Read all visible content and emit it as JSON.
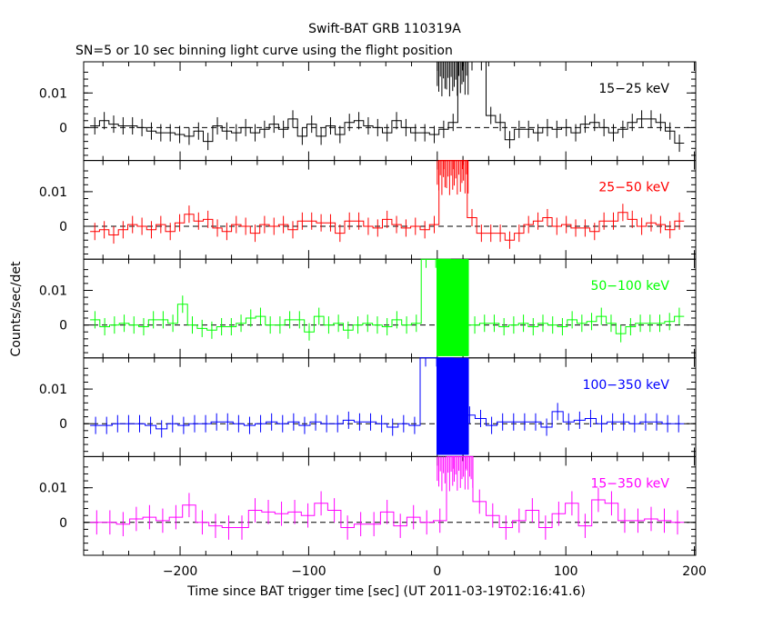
{
  "chart_data": {
    "type": "line",
    "title": "Swift-BAT GRB 110319A",
    "subtitle": "SN=5 or 10 sec binning light curve using the flight position",
    "xlabel": "Time since BAT trigger time [sec] (UT 2011-03-19T02:16:41.6)",
    "ylabel": "Counts/sec/det",
    "xlim": [
      -275,
      201
    ],
    "ylim": [
      -0.0095,
      0.019
    ],
    "x_ticks": [
      -200,
      -100,
      0,
      100,
      200
    ],
    "x_tick_labels": [
      "−200",
      "−100",
      "0",
      "100",
      "200"
    ],
    "y_ticks": [
      0,
      0.01
    ],
    "y_tick_labels": [
      "0",
      "0.01"
    ],
    "zero_line": "dashed",
    "grid": false,
    "panels": [
      {
        "label": "15−25 keV",
        "color": "#000000",
        "err": 0.0025,
        "values": [
          0.0005,
          0.002,
          0.001,
          0.0005,
          0.0005,
          0.0,
          -0.001,
          -0.0015,
          -0.0015,
          -0.002,
          -0.0025,
          -0.001,
          -0.004,
          0.0005,
          -0.001,
          -0.0015,
          0.0,
          -0.0015,
          -0.0005,
          0.001,
          -0.0005,
          0.0025,
          -0.0025,
          0.001,
          -0.0025,
          0.0005,
          -0.002,
          0.0015,
          0.002,
          0.0005,
          0.0,
          -0.0015,
          0.002,
          0.0,
          -0.0015,
          -0.0015,
          -0.002,
          -0.0005,
          0.0015,
          0.019,
          0.019,
          0.019,
          0.0035,
          0.0015,
          -0.0035,
          -0.0005,
          -0.0005,
          -0.0015,
          0.0,
          -0.0005,
          0.0,
          -0.0015,
          0.001,
          0.0015,
          0.0,
          -0.0015,
          -0.0005,
          0.0015,
          0.0025,
          0.0025,
          0.0015,
          -0.001,
          -0.0045
        ]
      },
      {
        "label": "25−50 keV",
        "color": "#ff0000",
        "err": 0.0025,
        "values": [
          -0.0015,
          -0.001,
          -0.0025,
          -0.001,
          0.0005,
          0.0,
          -0.001,
          0.0005,
          -0.0015,
          0.001,
          0.0035,
          0.0015,
          0.002,
          -0.0005,
          -0.0015,
          0.0005,
          0.0,
          -0.002,
          0.0005,
          0.0,
          0.0005,
          -0.001,
          0.0015,
          0.0015,
          0.001,
          0.001,
          -0.002,
          0.0015,
          0.0015,
          0.0,
          -0.0005,
          0.002,
          0.0005,
          -0.0005,
          0.0,
          -0.001,
          0.0005,
          0.019,
          0.019,
          0.019,
          0.0025,
          -0.002,
          -0.002,
          -0.002,
          -0.004,
          -0.002,
          0.0005,
          0.0015,
          0.0025,
          0.0,
          0.0005,
          -0.0005,
          -0.0005,
          -0.0015,
          0.0015,
          0.0015,
          0.004,
          0.002,
          0.0,
          0.001,
          0.0005,
          -0.001,
          0.0015
        ]
      },
      {
        "label": "50−100 keV",
        "color": "#00ff00",
        "err": 0.0025,
        "values": [
          0.0015,
          -0.0005,
          0.0,
          0.0005,
          0.0,
          -0.0005,
          0.0015,
          0.0015,
          0.0005,
          0.006,
          0.0,
          -0.001,
          -0.0015,
          -0.0005,
          -0.0005,
          0.0005,
          0.002,
          0.0025,
          0.0,
          0.0,
          0.0015,
          0.0015,
          -0.002,
          0.0025,
          0.0,
          0.0005,
          -0.0015,
          0.0,
          0.0005,
          0.0,
          -0.0005,
          0.0015,
          0.0,
          0.0005,
          0.019,
          0.019,
          0.019,
          0.0015,
          0.0,
          0.0,
          0.0005,
          0.0005,
          -0.0005,
          0.0,
          0.0005,
          -0.0005,
          0.0005,
          0.0,
          -0.0005,
          0.0015,
          0.0005,
          0.001,
          0.0025,
          0.0005,
          -0.0025,
          -0.0005,
          0.0005,
          0.0005,
          0.0005,
          0.001,
          0.0025
        ]
      },
      {
        "label": "100−350 keV",
        "color": "#0000ff",
        "err": 0.0025,
        "values": [
          -0.0005,
          -0.0005,
          0.0,
          0.0,
          0.0,
          -0.0005,
          -0.0015,
          0.0,
          -0.0005,
          0.0,
          0.0,
          0.0005,
          0.0005,
          0.0,
          -0.0005,
          0.0,
          0.0005,
          0.0,
          0.0005,
          -0.0005,
          0.0005,
          0.0,
          0.0,
          0.001,
          0.0005,
          0.0005,
          0.0,
          -0.001,
          0.0,
          -0.0005,
          0.019,
          0.019,
          0.019,
          0.0,
          0.0025,
          0.0015,
          -0.0005,
          0.0005,
          0.0005,
          0.0005,
          0.0005,
          -0.001,
          0.0035,
          0.0005,
          0.001,
          0.0015,
          0.0,
          0.0005,
          0.0005,
          0.0,
          0.0005,
          0.0005,
          0.0,
          0.0
        ]
      },
      {
        "label": "15−350 keV",
        "color": "#ff00ff",
        "err": 0.0035,
        "values": [
          0.0,
          0.0,
          -0.0005,
          0.001,
          0.0015,
          0.0005,
          0.0015,
          0.005,
          0.0,
          -0.001,
          -0.0015,
          -0.0015,
          0.0035,
          0.003,
          0.0025,
          0.003,
          0.002,
          0.0055,
          0.0035,
          -0.0015,
          -0.0005,
          -0.0005,
          0.003,
          -0.001,
          0.0015,
          0.0,
          0.0005,
          0.019,
          0.019,
          0.006,
          0.002,
          -0.0015,
          0.0005,
          0.0035,
          -0.0015,
          0.0025,
          0.0055,
          -0.001,
          0.0065,
          0.0055,
          0.0005,
          0.0005,
          0.001,
          0.0005,
          0.0
        ]
      }
    ]
  }
}
